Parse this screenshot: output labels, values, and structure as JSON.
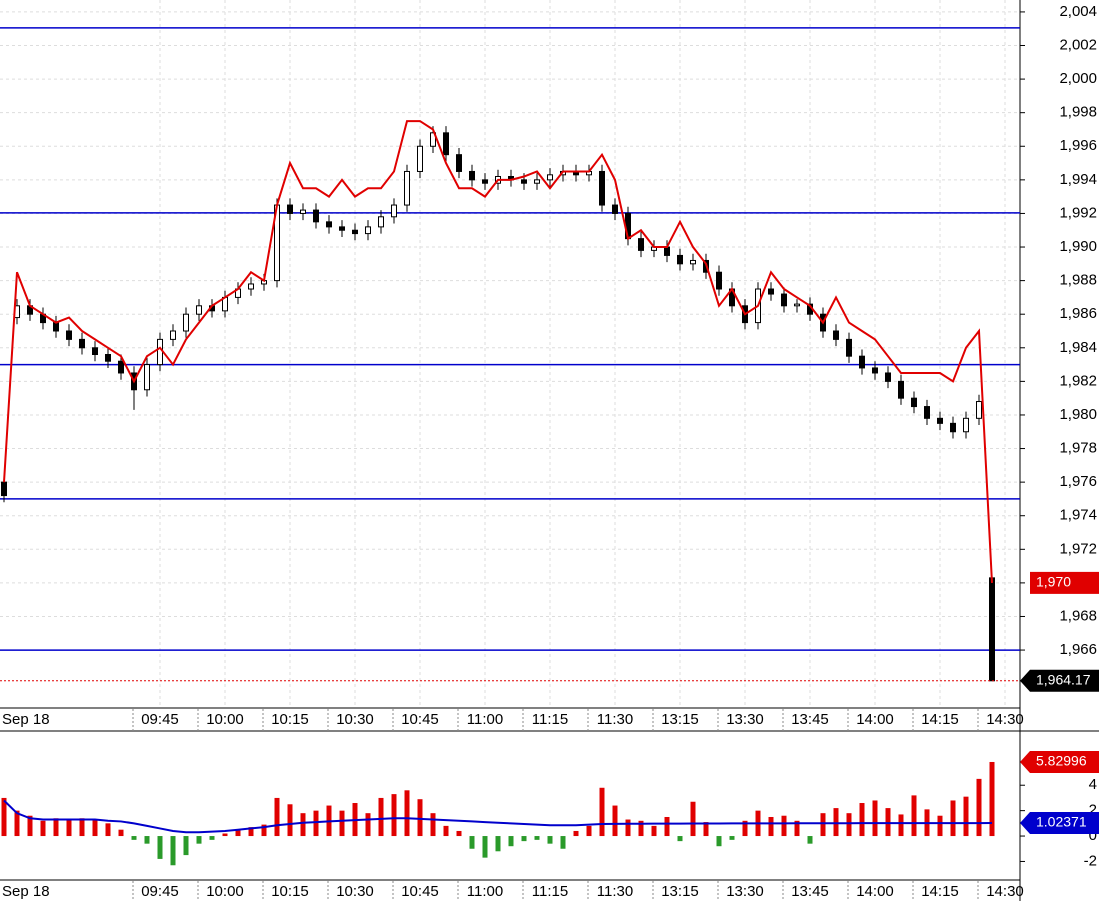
{
  "chart_data": [
    {
      "type": "candlestick",
      "categories": [
        "Sep 18",
        null,
        null,
        null,
        null,
        null,
        null,
        null,
        null,
        null,
        null,
        null,
        "09:45",
        null,
        null,
        null,
        null,
        "10:00",
        null,
        null,
        null,
        null,
        "10:15",
        null,
        null,
        null,
        null,
        "10:30",
        null,
        null,
        null,
        null,
        "10:45",
        null,
        null,
        null,
        null,
        "11:00",
        null,
        null,
        null,
        null,
        "11:15",
        null,
        null,
        null,
        null,
        "11:30",
        null,
        null,
        null,
        null,
        "13:15",
        null,
        null,
        null,
        null,
        "13:30",
        null,
        null,
        null,
        null,
        "13:45",
        null,
        null,
        null,
        null,
        "14:00",
        null,
        null,
        null,
        null,
        "14:15",
        null,
        null,
        null,
        null,
        "14:30"
      ],
      "open": [
        1976,
        1985.8,
        1986.5,
        1986,
        1985.5,
        1985,
        1984.5,
        1984,
        1983.6,
        1983.2,
        1982.5,
        1981.5,
        1983,
        1984.5,
        1985,
        1986,
        1986.5,
        1986.2,
        1987,
        1987.5,
        1987.8,
        1988,
        1992.5,
        1992,
        1992.2,
        1991.5,
        1991.2,
        1991,
        1990.8,
        1991.2,
        1991.8,
        1992.5,
        1994.5,
        1996,
        1996.8,
        1995.5,
        1994.5,
        1994,
        1993.8,
        1994.2,
        1994,
        1993.8,
        1994,
        1994.3,
        1994.5,
        1994.3,
        1994.5,
        1992.5,
        1992,
        1990.5,
        1989.8,
        1990,
        1989.5,
        1989,
        1989.2,
        1988.5,
        1987.5,
        1986.5,
        1985.5,
        1987.5,
        1987.2,
        1986.5,
        1986.6,
        1986,
        1985,
        1984.5,
        1983.5,
        1982.8,
        1982.5,
        1982,
        1981,
        1980.5,
        1979.8,
        1979.5,
        1979,
        1979.8,
        1970.3,
        null
      ],
      "high": [
        1976.4,
        1986.9,
        1986.9,
        1986.4,
        1985.9,
        1985.4,
        1984.9,
        1984.4,
        1984,
        1983.6,
        1982.9,
        1983.4,
        1984.9,
        1985.4,
        1986.4,
        1986.9,
        1986.9,
        1987.4,
        1987.9,
        1988.2,
        1988.4,
        1992.9,
        1992.9,
        1992.6,
        1992.6,
        1991.9,
        1991.6,
        1991.4,
        1991.6,
        1992.2,
        1992.9,
        1994.9,
        1996.4,
        1997.2,
        1997.2,
        1995.9,
        1994.9,
        1994.4,
        1994.6,
        1994.6,
        1994.4,
        1994.4,
        1994.7,
        1994.9,
        1994.9,
        1994.9,
        1994.9,
        1992.9,
        1992.4,
        1990.9,
        1990.4,
        1990.4,
        1989.9,
        1989.6,
        1989.6,
        1988.9,
        1987.9,
        1986.9,
        1987.9,
        1987.9,
        1987.6,
        1986.9,
        1987,
        1986.4,
        1985.4,
        1984.9,
        1983.9,
        1983.2,
        1982.9,
        1982.4,
        1981.4,
        1980.9,
        1980.2,
        1979.9,
        1980.2,
        1981.2,
        1970.3,
        null
      ],
      "low": [
        1974.8,
        1985.4,
        1985.6,
        1985.1,
        1984.6,
        1984.1,
        1983.6,
        1983.2,
        1982.8,
        1982.1,
        1980.3,
        1981.1,
        1982.6,
        1984.1,
        1984.6,
        1985.6,
        1985.8,
        1985.8,
        1986.6,
        1987.1,
        1987.4,
        1987.6,
        1991.6,
        1991.6,
        1991.1,
        1990.8,
        1990.6,
        1990.4,
        1990.4,
        1990.8,
        1991.4,
        1992.1,
        1994.1,
        1995.6,
        1995.1,
        1994.1,
        1993.6,
        1993.4,
        1993.4,
        1993.6,
        1993.4,
        1993.4,
        1993.6,
        1993.9,
        1993.9,
        1993.9,
        1992.1,
        1991.6,
        1990.1,
        1989.4,
        1989.4,
        1989.1,
        1988.6,
        1988.6,
        1988.1,
        1987.1,
        1986.1,
        1985.1,
        1985.1,
        1986.8,
        1986.1,
        1986.1,
        1985.6,
        1984.6,
        1984.1,
        1983.1,
        1982.4,
        1982.1,
        1981.6,
        1980.6,
        1980.1,
        1979.4,
        1979.1,
        1978.6,
        1978.6,
        1979.4,
        1964.17,
        null
      ],
      "close": [
        1975.2,
        1986.5,
        1986,
        1985.5,
        1985,
        1984.5,
        1984,
        1983.6,
        1983.2,
        1982.5,
        1981.5,
        1983,
        1984.5,
        1985,
        1986,
        1986.5,
        1986.2,
        1987,
        1987.5,
        1987.8,
        1988,
        1992.5,
        1992,
        1992.2,
        1991.5,
        1991.2,
        1991,
        1990.8,
        1991.2,
        1991.8,
        1992.5,
        1994.5,
        1996,
        1996.8,
        1995.5,
        1994.5,
        1994,
        1993.8,
        1994.2,
        1994,
        1993.8,
        1994,
        1994.3,
        1994.5,
        1994.3,
        1994.5,
        1992.5,
        1992,
        1990.5,
        1989.8,
        1990,
        1989.5,
        1989,
        1989.2,
        1988.5,
        1987.5,
        1986.5,
        1985.5,
        1987.5,
        1987.2,
        1986.5,
        1986.6,
        1986,
        1985,
        1984.5,
        1983.5,
        1982.8,
        1982.5,
        1982,
        1981,
        1980.5,
        1979.8,
        1979.5,
        1979,
        1979.8,
        1980.8,
        1964.17,
        null
      ],
      "series": [
        {
          "color": "#e00000",
          "values": [
            1976,
            1988.5,
            1986.5,
            1986,
            1985.5,
            1985.8,
            1985,
            1984.5,
            1984,
            1983.5,
            1982,
            1983.5,
            1984,
            1983,
            1984.5,
            1985.5,
            1986.5,
            1987,
            1987.5,
            1988.5,
            1988,
            1992.5,
            1995,
            1993.5,
            1993.5,
            1993,
            1994,
            1993,
            1993.5,
            1993.5,
            1994.5,
            1997.5,
            1997.5,
            1997,
            1995,
            1993.5,
            1993.5,
            1993,
            1994,
            1994,
            1994.2,
            1994.5,
            1993.5,
            1994.5,
            1994.5,
            1994.5,
            1995.5,
            1994,
            1990.5,
            1991,
            1990,
            1990,
            1991.5,
            1990,
            1989,
            1986.5,
            1987.5,
            1986,
            1986.5,
            1988.5,
            1987.5,
            1987,
            1986.5,
            1985.5,
            1987,
            1985.5,
            1985,
            1984.5,
            1983.5,
            1982.5,
            1982.5,
            1982.5,
            1982.5,
            1982,
            1984,
            1985,
            1970,
            null
          ]
        }
      ],
      "levels": [
        2003.05,
        1992.03,
        1983.0,
        1975.0,
        1966.0
      ],
      "level_color": "#0000cc",
      "price_labels": [
        {
          "value": 1970,
          "label": "1,970"
        },
        {
          "value": 1964.17,
          "label": "1,964.17"
        }
      ],
      "ylim": [
        1962.55,
        2004.71
      ],
      "yticks": [
        {
          "value": 1966,
          "label": "1,966"
        },
        {
          "value": 1968,
          "label": "1,968"
        },
        {
          "value": 1970,
          "label": "1,970"
        },
        {
          "value": 1972,
          "label": "1,972"
        },
        {
          "value": 1974,
          "label": "1,974"
        },
        {
          "value": 1976,
          "label": "1,976"
        },
        {
          "value": 1978,
          "label": "1,978"
        },
        {
          "value": 1980,
          "label": "1,980"
        },
        {
          "value": 1982,
          "label": "1,982"
        },
        {
          "value": 1984,
          "label": "1,984"
        },
        {
          "value": 1986,
          "label": "1,986"
        },
        {
          "value": 1988,
          "label": "1,988"
        },
        {
          "value": 1990,
          "label": "1,990"
        },
        {
          "value": 1992,
          "label": "1,992"
        },
        {
          "value": 1994,
          "label": "1,994"
        },
        {
          "value": 1996,
          "label": "1,996"
        },
        {
          "value": 1998,
          "label": "1,998"
        },
        {
          "value": 2000,
          "label": "2,000"
        },
        {
          "value": 2002,
          "label": "2,002"
        },
        {
          "value": 2004,
          "label": "2,004"
        }
      ],
      "grid": true
    },
    {
      "type": "bar",
      "categories": [
        "Sep 18",
        null,
        null,
        null,
        null,
        null,
        null,
        null,
        null,
        null,
        null,
        null,
        "09:45",
        null,
        null,
        null,
        null,
        "10:00",
        null,
        null,
        null,
        null,
        "10:15",
        null,
        null,
        null,
        null,
        "10:30",
        null,
        null,
        null,
        null,
        "10:45",
        null,
        null,
        null,
        null,
        "11:00",
        null,
        null,
        null,
        null,
        "11:15",
        null,
        null,
        null,
        null,
        "11:30",
        null,
        null,
        null,
        null,
        "13:15",
        null,
        null,
        null,
        null,
        "13:30",
        null,
        null,
        null,
        null,
        "13:45",
        null,
        null,
        null,
        null,
        "14:00",
        null,
        null,
        null,
        null,
        "14:15",
        null,
        null,
        null,
        null,
        "14:30"
      ],
      "values": [
        3,
        2,
        1.6,
        1.2,
        1.4,
        1.3,
        1.4,
        1.3,
        1,
        0.5,
        -0.3,
        -0.6,
        -1.8,
        -2.3,
        -1.5,
        -0.6,
        -0.3,
        0.2,
        0.5,
        0.7,
        0.9,
        3,
        2.5,
        1.8,
        2,
        2.4,
        2,
        2.6,
        1.8,
        3,
        3.3,
        3.6,
        2.9,
        1.8,
        0.8,
        0.4,
        -1,
        -1.7,
        -1.2,
        -0.8,
        -0.4,
        -0.3,
        -0.6,
        -1,
        0.4,
        0.8,
        3.8,
        2.4,
        1.3,
        1.2,
        0.8,
        1.5,
        -0.4,
        2.7,
        1.1,
        -0.8,
        -0.3,
        1.2,
        2,
        1.5,
        1.6,
        1.2,
        -0.6,
        1.8,
        2.2,
        1.8,
        2.6,
        2.8,
        2.2,
        1.7,
        3.2,
        2.1,
        1.6,
        2.8,
        3.1,
        4.5,
        5.82996,
        null
      ],
      "up_color": "#e00000",
      "down_color": "#2a9a2a",
      "series": [
        {
          "color": "#0000cc",
          "values": [
            2.8,
            1.8,
            1.4,
            1.3,
            1.3,
            1.3,
            1.3,
            1.3,
            1.2,
            1.15,
            1,
            0.8,
            0.6,
            0.4,
            0.3,
            0.3,
            0.35,
            0.4,
            0.5,
            0.6,
            0.7,
            0.85,
            0.95,
            1.05,
            1.1,
            1.15,
            1.2,
            1.25,
            1.3,
            1.35,
            1.4,
            1.4,
            1.35,
            1.3,
            1.25,
            1.2,
            1.15,
            1.1,
            1.05,
            1,
            0.95,
            0.9,
            0.85,
            0.85,
            0.85,
            0.9,
            0.95,
            0.96,
            0.97,
            0.97,
            0.98,
            0.98,
            0.98,
            0.99,
            0.99,
            0.99,
            1,
            1,
            1,
            1,
            1,
            1.01,
            1.01,
            1.01,
            1.01,
            1.01,
            1.02,
            1.02,
            1.02,
            1.02,
            1.02,
            1.02,
            1.02,
            1.02,
            1.02,
            1.02,
            1.02371,
            null
          ]
        }
      ],
      "ylim": [
        -3.46,
        8.19
      ],
      "yticks": [
        -2,
        0,
        2,
        4
      ]
    }
  ]
}
